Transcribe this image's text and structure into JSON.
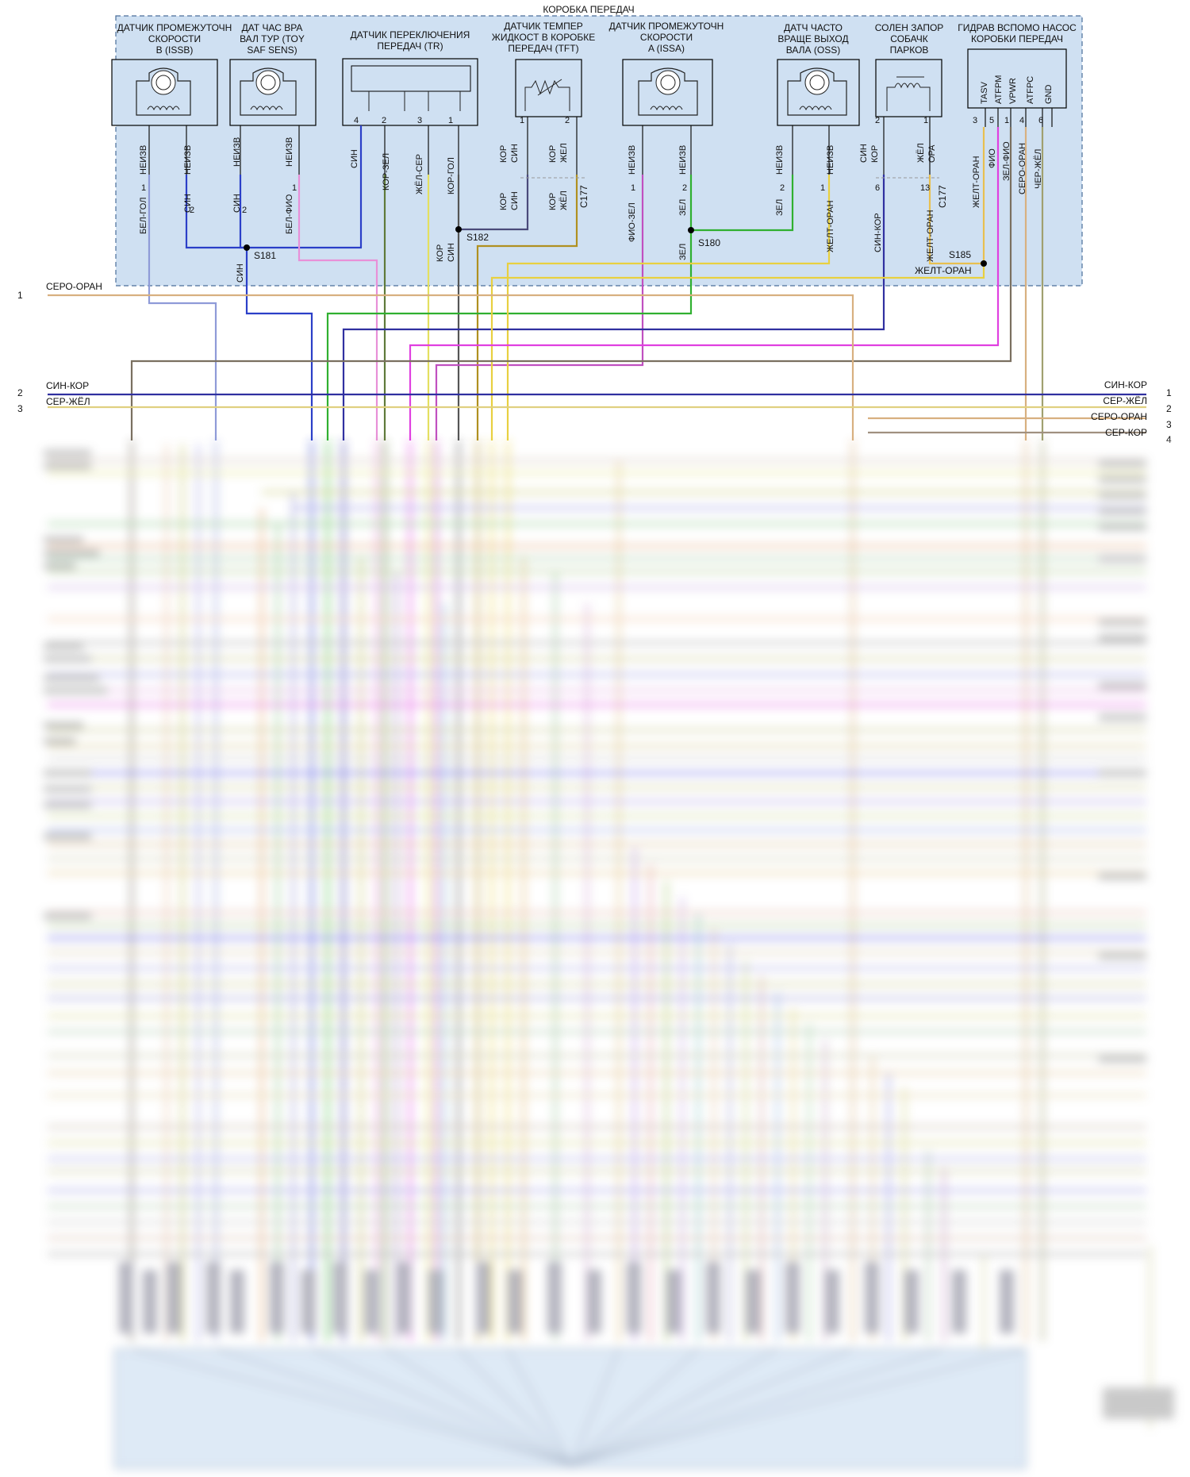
{
  "colors": {
    "box_fill": "#cfe0f2",
    "box_border": "#4a6e9a",
    "sin": "#2b3fc8",
    "bel_gol": "#8f9bd8",
    "bel_fio": "#e890d8",
    "kor_zel": "#5f7a3a",
    "zhel_ser": "#e4e060",
    "kor_gol": "#555555",
    "kor_sin": "#4a4a7a",
    "kor_zhel": "#b09020",
    "fio_zel": "#c050c0",
    "zel": "#30b030",
    "zhelt_oran": "#e8d040",
    "sin_kor": "#3030a0",
    "zhel_ora": "#e8c050",
    "fio": "#e040e0",
    "zel_fio": "#60a070",
    "sero_oran": "#d8b080",
    "cher_zhel": "#a0a070",
    "ser_zhel": "#e0d080",
    "ser_kor": "#a09080",
    "gray_kor": "#7a7060"
  },
  "box_title": "КОРОБКА ПЕРЕДАЧ",
  "components": {
    "issb": {
      "l1": "ДАТЧИК ПРОМЕЖУТОЧН",
      "l2": "СКОРОСТИ",
      "l3": "B (ISSB)"
    },
    "toy": {
      "l1": "ДАТ ЧАС ВРА",
      "l2": "ВАЛ ТУР (TOY",
      "l3": "SAF SENS)"
    },
    "tr": {
      "l1": "ДАТЧИК ПЕРЕКЛЮЧЕНИЯ",
      "l2": "ПЕРЕДАЧ (TR)"
    },
    "tft": {
      "l1": "ДАТЧИК ТЕМПЕР",
      "l2": "ЖИДКОСТ В КОРОБКЕ",
      "l3": "ПЕРЕДАЧ (TFT)"
    },
    "issa": {
      "l1": "ДАТЧИК ПРОМЕЖУТОЧН",
      "l2": "СКОРОСТИ",
      "l3": "A (ISSA)"
    },
    "oss": {
      "l1": "ДАТЧ ЧАСТО",
      "l2": "ВРАЩЕ ВЫХОД",
      "l3": "ВАЛА (OSS)"
    },
    "park": {
      "l1": "СОЛЕН ЗАПОР",
      "l2": "СОБАЧК",
      "l3": "ПАРКОВ"
    },
    "pump": {
      "l1": "ГИДРАВ ВСПОМО НАСОС",
      "l2": "КОРОБКИ ПЕРЕДАЧ",
      "pins": [
        "TASV",
        "ATFPM",
        "VPWR",
        "ATFPC",
        "GND"
      ]
    }
  },
  "wires": {
    "neizv": "НЕИЗВ",
    "sin": "СИН",
    "kor_zel": "КОР-ЗЕЛ",
    "zhel_ser": "ЖЁЛ-СЕР",
    "kor_gol": "КОР-ГОЛ",
    "kor": "КОР",
    "zhel": "ЖЕЛ",
    "zhel2": "ЖЁЛ",
    "ora": "ОРА",
    "bel_gol": "БЕЛ-ГОЛ",
    "bel_fio": "БЕЛ-ФИО",
    "fio_zel": "ФИО-ЗЕЛ",
    "zel": "ЗЕЛ",
    "zhelt_oran": "ЖЕЛТ-ОРАН",
    "sin_kor": "СИН-КОР",
    "fio": "ФИО",
    "zel_fio": "ЗЕЛ-ФИО",
    "sero_oran": "СЕРО-ОРАН",
    "cher_zhel": "ЧЕР-ЖЁЛ",
    "ser_zhel": "СЕР-ЖЁЛ",
    "ser_kor": "СЕР-КОР"
  },
  "pins": {
    "p1": "1",
    "p2": "2",
    "p3": "3",
    "p4": "4",
    "p5": "5",
    "p6": "6",
    "p13": "13"
  },
  "splices": {
    "s181": "S181",
    "s182": "S182",
    "s180": "S180",
    "s185": "S185",
    "c177": "C177"
  },
  "left_harness": [
    {
      "num": "1",
      "label": "СЕРО-ОРАН"
    },
    {
      "num": "2",
      "label": "СИН-КОР"
    },
    {
      "num": "3",
      "label": "СЕР-ЖЁЛ"
    }
  ],
  "right_harness": [
    {
      "num": "1",
      "label": "СИН-КОР"
    },
    {
      "num": "2",
      "label": "СЕР-ЖЁЛ"
    },
    {
      "num": "3",
      "label": "СЕРО-ОРАН"
    },
    {
      "num": "4",
      "label": "СЕР-КОР"
    }
  ]
}
